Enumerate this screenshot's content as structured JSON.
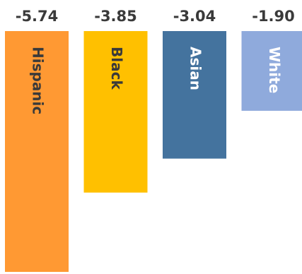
{
  "chart_data": {
    "type": "bar",
    "orientation": "vertical-downward",
    "categories": [
      "Hispanic",
      "Black",
      "Asian",
      "White"
    ],
    "values": [
      -5.74,
      -3.85,
      -3.04,
      -1.9
    ],
    "value_labels": [
      "-5.74",
      "-3.85",
      "-3.04",
      "-1.90"
    ],
    "ylim": [
      -5.74,
      0
    ],
    "grid": false,
    "legend": "none",
    "bar_colors": [
      "#FF9933",
      "#FFC000",
      "#44739E",
      "#8FAADC"
    ],
    "label_colors": [
      "#3a3a3a",
      "#3a3a3a",
      "#ffffff",
      "#ffffff"
    ]
  }
}
